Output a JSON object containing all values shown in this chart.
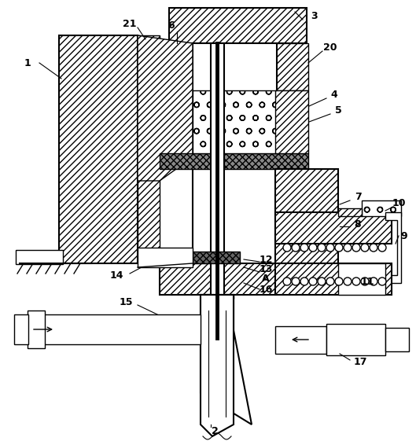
{
  "background": "#ffffff",
  "figsize": [
    5.29,
    5.61
  ],
  "dpi": 100,
  "lw": 1.0,
  "lw2": 1.5
}
